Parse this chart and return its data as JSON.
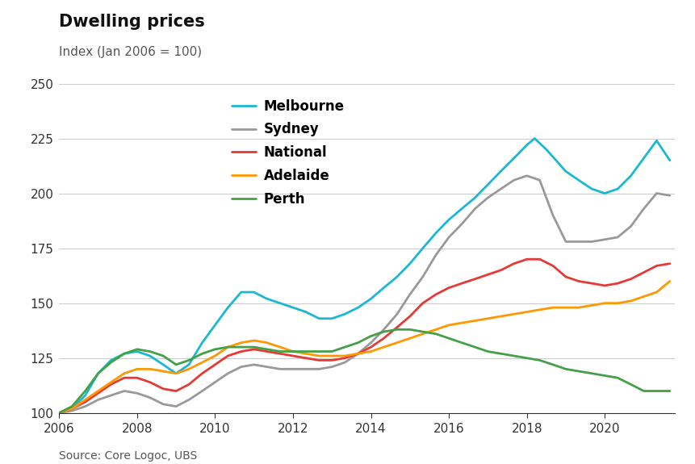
{
  "title": "Dwelling prices",
  "subtitle": "Index (Jan 2006 = 100)",
  "source": "Source: Core Logoc, UBS",
  "ylim": [
    100,
    250
  ],
  "yticks": [
    100,
    125,
    150,
    175,
    200,
    225,
    250
  ],
  "xlim": [
    2006.0,
    2021.8
  ],
  "xticks": [
    2006,
    2008,
    2010,
    2012,
    2014,
    2016,
    2018,
    2020
  ],
  "background_color": "#ffffff",
  "grid_color": "#cccccc",
  "series": {
    "Melbourne": {
      "color": "#1ab8d4",
      "x": [
        2006.0,
        2006.33,
        2006.67,
        2007.0,
        2007.33,
        2007.67,
        2008.0,
        2008.33,
        2008.67,
        2009.0,
        2009.33,
        2009.67,
        2010.0,
        2010.33,
        2010.67,
        2011.0,
        2011.33,
        2011.67,
        2012.0,
        2012.33,
        2012.67,
        2013.0,
        2013.33,
        2013.67,
        2014.0,
        2014.33,
        2014.67,
        2015.0,
        2015.33,
        2015.67,
        2016.0,
        2016.33,
        2016.67,
        2017.0,
        2017.33,
        2017.67,
        2018.0,
        2018.2,
        2018.5,
        2018.8,
        2019.0,
        2019.33,
        2019.67,
        2020.0,
        2020.33,
        2020.67,
        2021.0,
        2021.33,
        2021.67
      ],
      "y": [
        100,
        102,
        108,
        118,
        124,
        127,
        128,
        126,
        122,
        118,
        122,
        132,
        140,
        148,
        155,
        155,
        152,
        150,
        148,
        146,
        143,
        143,
        145,
        148,
        152,
        157,
        162,
        168,
        175,
        182,
        188,
        193,
        198,
        204,
        210,
        216,
        222,
        225,
        220,
        214,
        210,
        206,
        202,
        200,
        202,
        208,
        216,
        224,
        215
      ]
    },
    "Sydney": {
      "color": "#999999",
      "x": [
        2006.0,
        2006.33,
        2006.67,
        2007.0,
        2007.33,
        2007.67,
        2008.0,
        2008.33,
        2008.67,
        2009.0,
        2009.33,
        2009.67,
        2010.0,
        2010.33,
        2010.67,
        2011.0,
        2011.33,
        2011.67,
        2012.0,
        2012.33,
        2012.67,
        2013.0,
        2013.33,
        2013.67,
        2014.0,
        2014.33,
        2014.67,
        2015.0,
        2015.33,
        2015.67,
        2016.0,
        2016.33,
        2016.67,
        2017.0,
        2017.33,
        2017.67,
        2018.0,
        2018.33,
        2018.67,
        2019.0,
        2019.33,
        2019.67,
        2020.0,
        2020.33,
        2020.67,
        2021.0,
        2021.33,
        2021.67
      ],
      "y": [
        100,
        101,
        103,
        106,
        108,
        110,
        109,
        107,
        104,
        103,
        106,
        110,
        114,
        118,
        121,
        122,
        121,
        120,
        120,
        120,
        120,
        121,
        123,
        127,
        132,
        138,
        145,
        154,
        162,
        172,
        180,
        186,
        193,
        198,
        202,
        206,
        208,
        206,
        190,
        178,
        178,
        178,
        179,
        180,
        185,
        193,
        200,
        199
      ]
    },
    "National": {
      "color": "#e53935",
      "x": [
        2006.0,
        2006.33,
        2006.67,
        2007.0,
        2007.33,
        2007.67,
        2008.0,
        2008.33,
        2008.67,
        2009.0,
        2009.33,
        2009.67,
        2010.0,
        2010.33,
        2010.67,
        2011.0,
        2011.33,
        2011.67,
        2012.0,
        2012.33,
        2012.67,
        2013.0,
        2013.33,
        2013.67,
        2014.0,
        2014.33,
        2014.67,
        2015.0,
        2015.33,
        2015.67,
        2016.0,
        2016.33,
        2016.67,
        2017.0,
        2017.33,
        2017.67,
        2018.0,
        2018.33,
        2018.67,
        2019.0,
        2019.33,
        2019.67,
        2020.0,
        2020.33,
        2020.67,
        2021.0,
        2021.33,
        2021.67
      ],
      "y": [
        100,
        102,
        105,
        109,
        113,
        116,
        116,
        114,
        111,
        110,
        113,
        118,
        122,
        126,
        128,
        129,
        128,
        127,
        126,
        125,
        124,
        124,
        125,
        127,
        130,
        134,
        139,
        144,
        150,
        154,
        157,
        159,
        161,
        163,
        165,
        168,
        170,
        170,
        167,
        162,
        160,
        159,
        158,
        159,
        161,
        164,
        167,
        168
      ]
    },
    "Adelaide": {
      "color": "#ff9800",
      "x": [
        2006.0,
        2006.33,
        2006.67,
        2007.0,
        2007.33,
        2007.67,
        2008.0,
        2008.33,
        2008.67,
        2009.0,
        2009.33,
        2009.67,
        2010.0,
        2010.33,
        2010.67,
        2011.0,
        2011.33,
        2011.67,
        2012.0,
        2012.33,
        2012.67,
        2013.0,
        2013.33,
        2013.67,
        2014.0,
        2014.33,
        2014.67,
        2015.0,
        2015.33,
        2015.67,
        2016.0,
        2016.33,
        2016.67,
        2017.0,
        2017.33,
        2017.67,
        2018.0,
        2018.33,
        2018.67,
        2019.0,
        2019.33,
        2019.67,
        2020.0,
        2020.33,
        2020.67,
        2021.0,
        2021.33,
        2021.67
      ],
      "y": [
        100,
        102,
        106,
        110,
        114,
        118,
        120,
        120,
        119,
        118,
        120,
        123,
        126,
        130,
        132,
        133,
        132,
        130,
        128,
        127,
        126,
        126,
        126,
        127,
        128,
        130,
        132,
        134,
        136,
        138,
        140,
        141,
        142,
        143,
        144,
        145,
        146,
        147,
        148,
        148,
        148,
        149,
        150,
        150,
        151,
        153,
        155,
        160
      ]
    },
    "Perth": {
      "color": "#43a047",
      "x": [
        2006.0,
        2006.33,
        2006.67,
        2007.0,
        2007.33,
        2007.67,
        2008.0,
        2008.33,
        2008.67,
        2009.0,
        2009.33,
        2009.67,
        2010.0,
        2010.33,
        2010.67,
        2011.0,
        2011.33,
        2011.67,
        2012.0,
        2012.33,
        2012.67,
        2013.0,
        2013.33,
        2013.67,
        2014.0,
        2014.33,
        2014.67,
        2015.0,
        2015.33,
        2015.67,
        2016.0,
        2016.33,
        2016.67,
        2017.0,
        2017.33,
        2017.67,
        2018.0,
        2018.33,
        2018.67,
        2019.0,
        2019.33,
        2019.67,
        2020.0,
        2020.33,
        2020.67,
        2021.0,
        2021.33,
        2021.67
      ],
      "y": [
        100,
        103,
        110,
        118,
        123,
        127,
        129,
        128,
        126,
        122,
        124,
        127,
        129,
        130,
        130,
        130,
        129,
        128,
        128,
        128,
        128,
        128,
        130,
        132,
        135,
        137,
        138,
        138,
        137,
        136,
        134,
        132,
        130,
        128,
        127,
        126,
        125,
        124,
        122,
        120,
        119,
        118,
        117,
        116,
        113,
        110,
        110,
        110
      ]
    }
  },
  "legend_order": [
    "Melbourne",
    "Sydney",
    "National",
    "Adelaide",
    "Perth"
  ],
  "linewidth": 2.0,
  "title_fontsize": 15,
  "subtitle_fontsize": 11,
  "tick_fontsize": 11,
  "legend_fontsize": 12,
  "source_fontsize": 10
}
